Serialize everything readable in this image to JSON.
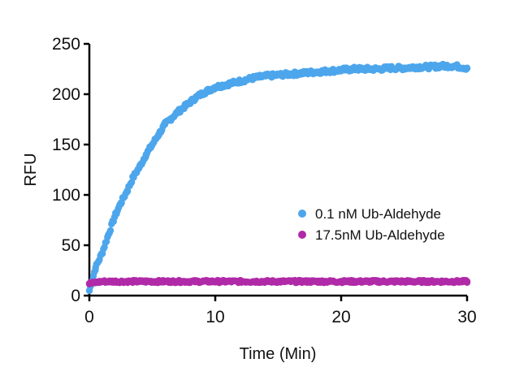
{
  "chart_data": {
    "type": "scatter",
    "title": "",
    "xlabel": "Time (Min)",
    "ylabel": "RFU",
    "xlim": [
      0,
      30
    ],
    "ylim": [
      0,
      250
    ],
    "xticks": [
      "0",
      "10",
      "20",
      "30"
    ],
    "yticks": [
      "0",
      "50",
      "100",
      "150",
      "200",
      "250"
    ],
    "grid": false,
    "legend_position": "right-center",
    "series": [
      {
        "name": "0.1 nM Ub-Aldehyde",
        "color": "#4da6ec",
        "x": [
          0,
          0.5,
          1,
          1.5,
          2,
          2.5,
          3,
          3.5,
          4,
          4.5,
          5,
          5.5,
          6,
          6.5,
          7,
          7.5,
          8,
          8.5,
          9,
          9.5,
          10,
          11,
          12,
          13,
          14,
          15,
          16,
          17,
          18,
          19,
          20,
          21,
          22,
          23,
          24,
          25,
          26,
          27,
          28,
          29,
          30
        ],
        "y": [
          5,
          28,
          42,
          60,
          78,
          92,
          104,
          118,
          128,
          140,
          150,
          160,
          170,
          176,
          182,
          187,
          192,
          197,
          201,
          204,
          207,
          210,
          213,
          216,
          218,
          219,
          220,
          221,
          222,
          223,
          224,
          225,
          225,
          225,
          226,
          226,
          227,
          227,
          228,
          228,
          226
        ]
      },
      {
        "name": "17.5nM Ub-Aldehyde",
        "color": "#b02aa8",
        "x": [
          0,
          1,
          2,
          3,
          4,
          5,
          6,
          7,
          8,
          9,
          10,
          11,
          12,
          13,
          14,
          15,
          16,
          17,
          18,
          19,
          20,
          21,
          22,
          23,
          24,
          25,
          26,
          27,
          28,
          29,
          30
        ],
        "y": [
          12,
          14,
          14,
          14,
          14,
          14,
          14,
          14,
          14,
          14,
          14,
          14,
          14,
          14,
          14,
          14,
          14,
          14,
          14,
          14,
          14,
          14,
          14,
          14,
          14,
          14,
          14,
          14,
          14,
          14,
          14
        ]
      }
    ]
  }
}
